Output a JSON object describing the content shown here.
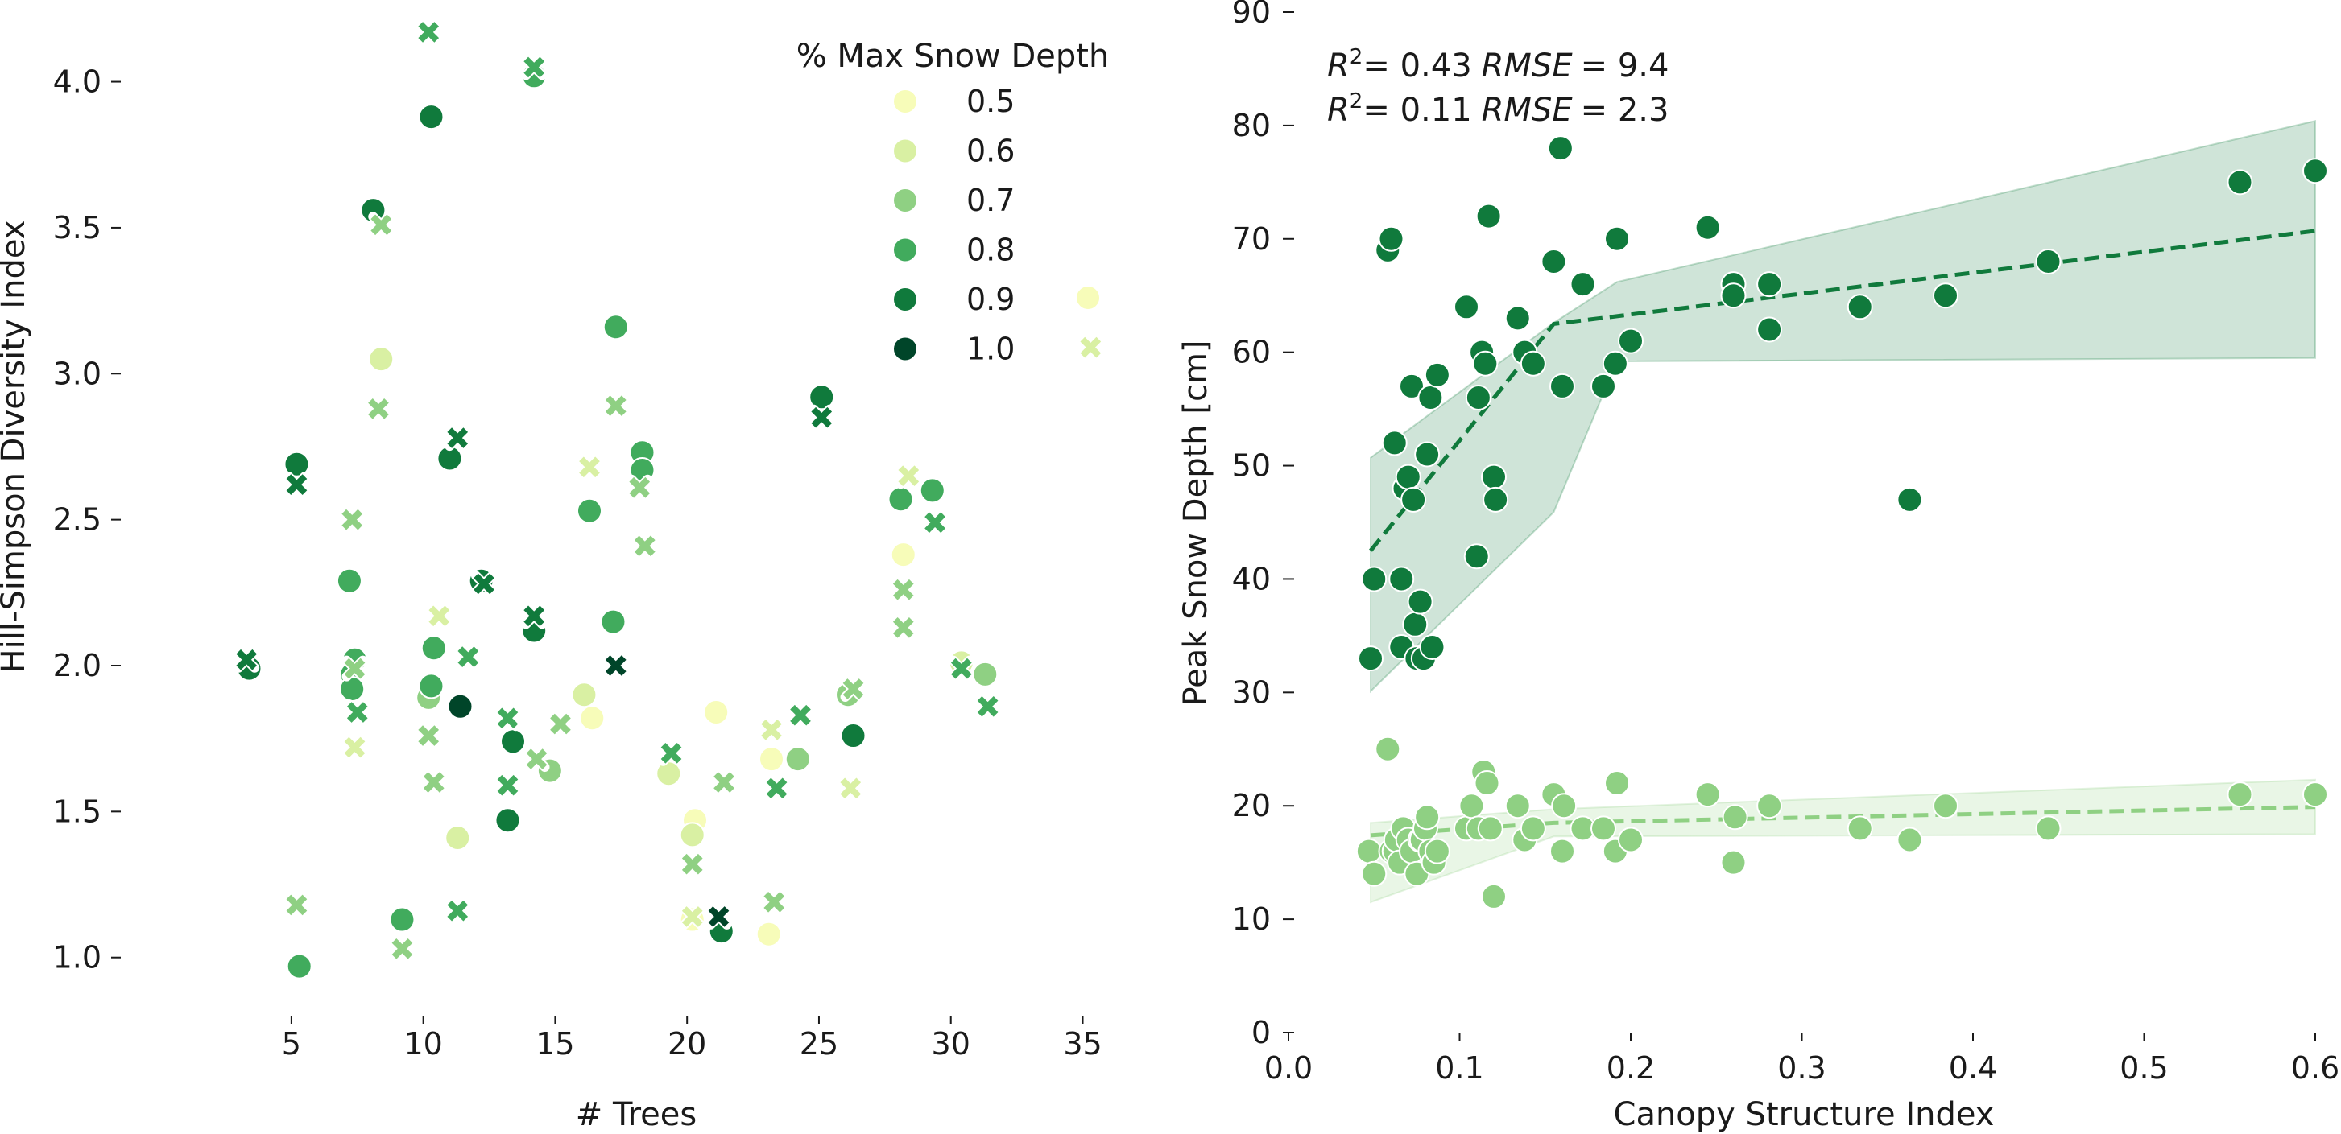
{
  "figure": {
    "left_panel": {
      "xlabel": "# Trees",
      "ylabel": "Hill-Simpson Diversity Index",
      "xlim": [
        2.5,
        37
      ],
      "ylim": [
        0.82,
        4.28
      ],
      "xticks": [
        "5",
        "10",
        "15",
        "20",
        "25",
        "30",
        "35"
      ],
      "yticks": [
        "1.0",
        "1.5",
        "2.0",
        "2.5",
        "3.0",
        "3.5",
        "4.0"
      ],
      "legend": {
        "title": "% Max Snow Depth",
        "entries": [
          {
            "label": "0.5",
            "color": "#f7fcb9"
          },
          {
            "label": "0.6",
            "color": "#d9f0a3"
          },
          {
            "label": "0.7",
            "color": "#8fd083"
          },
          {
            "label": "0.8",
            "color": "#41ab5d"
          },
          {
            "label": "0.9",
            "color": "#107a3c"
          },
          {
            "label": "1.0",
            "color": "#004529"
          }
        ]
      }
    },
    "right_panel": {
      "xlabel": "Canopy Structure Index",
      "ylabel": "Peak Snow Depth [cm]",
      "xlim": [
        0,
        0.6
      ],
      "ylim": [
        0,
        90
      ],
      "xticks": [
        "0.0",
        "0.1",
        "0.2",
        "0.3",
        "0.4",
        "0.5",
        "0.6"
      ],
      "yticks": [
        "0",
        "10",
        "20",
        "30",
        "40",
        "50",
        "60",
        "70",
        "80",
        "90"
      ],
      "stat_dark": {
        "r2": "= 0.43",
        "rmse": "= 9.4"
      },
      "stat_light": {
        "r2": "= 0.11",
        "rmse": "= 2.3"
      },
      "stat_words": {
        "r": "R",
        "sup": "2",
        "rmse_word": "RMSE"
      }
    }
  },
  "chart_data": [
    {
      "type": "scatter",
      "xlabel": "# Trees",
      "ylabel": "Hill-Simpson Diversity Index",
      "xlim": [
        2.5,
        37
      ],
      "ylim": [
        0.82,
        4.28
      ],
      "grid": false,
      "legend_title": "% Max Snow Depth",
      "legend_placement": "top-right",
      "marker_meaning": "circle and x markers",
      "circles": [
        [
          3.4,
          1.99,
          0.9
        ],
        [
          5.2,
          2.69,
          0.9
        ],
        [
          5.3,
          0.97,
          0.8
        ],
        [
          7.2,
          2.29,
          0.8
        ],
        [
          7.4,
          2.02,
          0.8
        ],
        [
          7.3,
          1.97,
          0.8
        ],
        [
          7.3,
          1.92,
          0.8
        ],
        [
          8.1,
          3.56,
          0.9
        ],
        [
          8.4,
          3.05,
          0.6
        ],
        [
          9.2,
          1.13,
          0.8
        ],
        [
          10.2,
          1.89,
          0.7
        ],
        [
          10.3,
          1.93,
          0.8
        ],
        [
          10.4,
          2.06,
          0.8
        ],
        [
          10.3,
          3.88,
          0.9
        ],
        [
          11.0,
          2.71,
          0.9
        ],
        [
          11.3,
          1.41,
          0.6
        ],
        [
          11.4,
          1.86,
          1.0
        ],
        [
          12.2,
          2.29,
          0.9
        ],
        [
          13.2,
          1.47,
          0.9
        ],
        [
          13.4,
          1.74,
          0.9
        ],
        [
          14.2,
          2.12,
          0.9
        ],
        [
          14.2,
          4.02,
          0.8
        ],
        [
          14.8,
          1.64,
          0.7
        ],
        [
          16.1,
          1.9,
          0.6
        ],
        [
          16.3,
          2.53,
          0.8
        ],
        [
          16.4,
          1.82,
          0.5
        ],
        [
          17.2,
          2.15,
          0.8
        ],
        [
          17.3,
          3.16,
          0.8
        ],
        [
          18.3,
          2.73,
          0.8
        ],
        [
          18.3,
          2.67,
          0.8
        ],
        [
          19.3,
          1.63,
          0.6
        ],
        [
          20.3,
          1.47,
          0.5
        ],
        [
          20.2,
          1.42,
          0.6
        ],
        [
          20.2,
          1.13,
          0.5
        ],
        [
          21.1,
          1.84,
          0.5
        ],
        [
          21.3,
          1.09,
          0.9
        ],
        [
          23.2,
          1.68,
          0.5
        ],
        [
          23.1,
          1.08,
          0.5
        ],
        [
          24.2,
          1.68,
          0.7
        ],
        [
          25.1,
          2.92,
          0.9
        ],
        [
          26.1,
          1.9,
          0.7
        ],
        [
          26.3,
          1.76,
          0.9
        ],
        [
          28.2,
          2.38,
          0.5
        ],
        [
          28.1,
          2.57,
          0.8
        ],
        [
          29.3,
          2.6,
          0.8
        ],
        [
          30.4,
          2.01,
          0.6
        ],
        [
          31.3,
          1.97,
          0.7
        ],
        [
          35.2,
          3.26,
          0.5
        ]
      ],
      "crosses": [
        [
          3.3,
          2.02,
          0.9
        ],
        [
          5.2,
          2.62,
          0.9
        ],
        [
          5.2,
          1.18,
          0.7
        ],
        [
          7.3,
          2.5,
          0.7
        ],
        [
          7.4,
          1.99,
          0.7
        ],
        [
          7.4,
          1.72,
          0.6
        ],
        [
          7.5,
          1.84,
          0.8
        ],
        [
          8.3,
          2.88,
          0.7
        ],
        [
          8.4,
          3.51,
          0.7
        ],
        [
          9.2,
          1.03,
          0.7
        ],
        [
          10.2,
          4.17,
          0.8
        ],
        [
          10.2,
          1.76,
          0.7
        ],
        [
          10.4,
          1.6,
          0.7
        ],
        [
          10.6,
          2.17,
          0.6
        ],
        [
          11.3,
          2.78,
          0.9
        ],
        [
          11.3,
          1.16,
          0.8
        ],
        [
          11.7,
          2.03,
          0.8
        ],
        [
          12.3,
          2.28,
          0.9
        ],
        [
          13.2,
          1.82,
          0.8
        ],
        [
          13.2,
          1.59,
          0.8
        ],
        [
          14.2,
          2.17,
          0.9
        ],
        [
          14.2,
          4.05,
          0.8
        ],
        [
          14.3,
          1.68,
          0.7
        ],
        [
          15.2,
          1.8,
          0.7
        ],
        [
          16.3,
          2.68,
          0.6
        ],
        [
          17.3,
          2.89,
          0.7
        ],
        [
          17.3,
          2.0,
          1.0
        ],
        [
          18.2,
          2.61,
          0.7
        ],
        [
          18.4,
          2.41,
          0.7
        ],
        [
          19.4,
          1.7,
          0.8
        ],
        [
          20.2,
          1.32,
          0.7
        ],
        [
          20.2,
          1.14,
          0.6
        ],
        [
          21.2,
          1.14,
          1.0
        ],
        [
          21.4,
          1.6,
          0.7
        ],
        [
          23.2,
          1.78,
          0.6
        ],
        [
          23.3,
          1.19,
          0.7
        ],
        [
          23.4,
          1.58,
          0.8
        ],
        [
          24.3,
          1.83,
          0.8
        ],
        [
          25.1,
          2.85,
          0.9
        ],
        [
          26.2,
          1.58,
          0.6
        ],
        [
          26.3,
          1.92,
          0.7
        ],
        [
          28.2,
          2.26,
          0.7
        ],
        [
          28.2,
          2.13,
          0.7
        ],
        [
          28.4,
          2.65,
          0.6
        ],
        [
          29.4,
          2.49,
          0.8
        ],
        [
          30.4,
          1.99,
          0.8
        ],
        [
          31.4,
          1.86,
          0.8
        ],
        [
          35.3,
          3.09,
          0.6
        ]
      ]
    },
    {
      "type": "scatter",
      "xlabel": "Canopy Structure Index",
      "ylabel": "Peak Snow Depth [cm]",
      "xlim": [
        0,
        0.6
      ],
      "ylim": [
        0,
        90
      ],
      "grid": false,
      "annotations": [
        "R² = 0.43 RMSE = 9.4",
        "R² = 0.11 RMSE = 2.3"
      ],
      "series": [
        {
          "color": "#107a3c",
          "points": [
            [
              0.048,
              33
            ],
            [
              0.05,
              40
            ],
            [
              0.058,
              69
            ],
            [
              0.06,
              70
            ],
            [
              0.062,
              52
            ],
            [
              0.066,
              40
            ],
            [
              0.066,
              34
            ],
            [
              0.068,
              48
            ],
            [
              0.07,
              49
            ],
            [
              0.072,
              57
            ],
            [
              0.073,
              47
            ],
            [
              0.074,
              36
            ],
            [
              0.075,
              33
            ],
            [
              0.077,
              38
            ],
            [
              0.079,
              33
            ],
            [
              0.081,
              51
            ],
            [
              0.083,
              56
            ],
            [
              0.084,
              34
            ],
            [
              0.087,
              58
            ],
            [
              0.104,
              64
            ],
            [
              0.11,
              42
            ],
            [
              0.111,
              56
            ],
            [
              0.113,
              60
            ],
            [
              0.115,
              59
            ],
            [
              0.117,
              72
            ],
            [
              0.12,
              49
            ],
            [
              0.121,
              47
            ],
            [
              0.134,
              63
            ],
            [
              0.138,
              60
            ],
            [
              0.143,
              59
            ],
            [
              0.155,
              68
            ],
            [
              0.159,
              78
            ],
            [
              0.16,
              57
            ],
            [
              0.172,
              66
            ],
            [
              0.184,
              57
            ],
            [
              0.191,
              59
            ],
            [
              0.192,
              70
            ],
            [
              0.2,
              61
            ],
            [
              0.245,
              71
            ],
            [
              0.26,
              66
            ],
            [
              0.26,
              65
            ],
            [
              0.281,
              66
            ],
            [
              0.281,
              62
            ],
            [
              0.334,
              64
            ],
            [
              0.363,
              47
            ],
            [
              0.384,
              65
            ],
            [
              0.444,
              68
            ],
            [
              0.556,
              75
            ],
            [
              0.6,
              76
            ]
          ],
          "trend": {
            "x": [
              0.048,
              0.155,
              0.6
            ],
            "y": [
              42.5,
              62.5,
              70.7
            ]
          },
          "ci_upper": {
            "x": [
              0.048,
              0.155,
              0.192,
              0.6
            ],
            "y": [
              50.7,
              62.6,
              66.2,
              80.4
            ]
          },
          "ci_lower": {
            "x": [
              0.048,
              0.155,
              0.192,
              0.6
            ],
            "y": [
              30.1,
              45.9,
              59.2,
              59.5
            ]
          }
        },
        {
          "color": "#8fd083",
          "points": [
            [
              0.047,
              16
            ],
            [
              0.05,
              14
            ],
            [
              0.058,
              25
            ],
            [
              0.06,
              16
            ],
            [
              0.062,
              16
            ],
            [
              0.063,
              17
            ],
            [
              0.065,
              15
            ],
            [
              0.067,
              18
            ],
            [
              0.07,
              17
            ],
            [
              0.072,
              16
            ],
            [
              0.075,
              14
            ],
            [
              0.077,
              17
            ],
            [
              0.078,
              17
            ],
            [
              0.08,
              18
            ],
            [
              0.081,
              19
            ],
            [
              0.083,
              16
            ],
            [
              0.085,
              15
            ],
            [
              0.087,
              16
            ],
            [
              0.104,
              18
            ],
            [
              0.107,
              20
            ],
            [
              0.111,
              18
            ],
            [
              0.114,
              23
            ],
            [
              0.116,
              22
            ],
            [
              0.118,
              18
            ],
            [
              0.12,
              12
            ],
            [
              0.134,
              20
            ],
            [
              0.138,
              17
            ],
            [
              0.143,
              18
            ],
            [
              0.155,
              21
            ],
            [
              0.16,
              16
            ],
            [
              0.161,
              20
            ],
            [
              0.172,
              18
            ],
            [
              0.184,
              18
            ],
            [
              0.191,
              16
            ],
            [
              0.192,
              22
            ],
            [
              0.2,
              17
            ],
            [
              0.245,
              21
            ],
            [
              0.26,
              15
            ],
            [
              0.261,
              19
            ],
            [
              0.281,
              20
            ],
            [
              0.334,
              18
            ],
            [
              0.363,
              17
            ],
            [
              0.384,
              20
            ],
            [
              0.444,
              18
            ],
            [
              0.556,
              21
            ],
            [
              0.6,
              21
            ]
          ],
          "trend": {
            "x": [
              0.048,
              0.155,
              0.6
            ],
            "y": [
              17.4,
              18.5,
              19.9
            ]
          },
          "ci_upper": {
            "x": [
              0.048,
              0.155,
              0.6
            ],
            "y": [
              18.5,
              19.7,
              22.3
            ]
          },
          "ci_lower": {
            "x": [
              0.048,
              0.155,
              0.6
            ],
            "y": [
              11.5,
              17.3,
              17.5
            ]
          }
        }
      ]
    }
  ]
}
